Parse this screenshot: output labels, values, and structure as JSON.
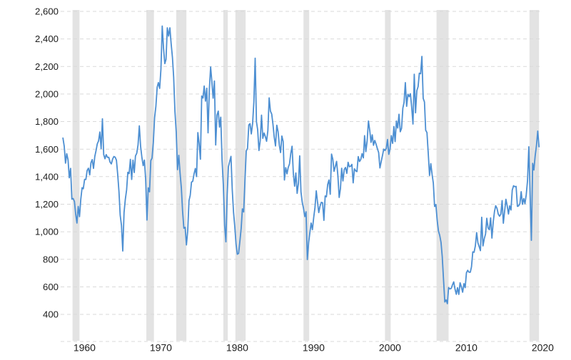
{
  "chart_data": {
    "type": "line",
    "grid": "horizontal-dashed",
    "legend": "none",
    "line_color": "#4d8fd2",
    "recession_band_color": "#e3e3e3",
    "axis_text_color": "#1c1c1c",
    "y_tick_labels": [
      "2,600",
      "2,400",
      "2,200",
      "2,000",
      "1,800",
      "1,600",
      "1,400",
      "1,200",
      "1,000",
      "800",
      "600",
      "400"
    ],
    "y_tick_values": [
      2600,
      2400,
      2200,
      2000,
      1800,
      1600,
      1400,
      1200,
      1000,
      800,
      600,
      400
    ],
    "x_tick_labels": [
      "1960",
      "1970",
      "1980",
      "1990",
      "2000",
      "2010",
      "2020"
    ],
    "x_tick_values": [
      1960,
      1970,
      1980,
      1990,
      2000,
      2010,
      2020
    ],
    "ylim": [
      400,
      2600
    ],
    "xlim": [
      1959,
      2021.5
    ],
    "recession_bands": [
      [
        1960.25,
        1961.17
      ],
      [
        1969.92,
        1970.92
      ],
      [
        1973.83,
        1975.17
      ],
      [
        1980.0,
        1980.58
      ],
      [
        1981.58,
        1982.92
      ],
      [
        1990.5,
        1991.25
      ],
      [
        2001.17,
        2001.92
      ],
      [
        2007.92,
        2009.5
      ],
      [
        2020.08,
        2021.33
      ]
    ],
    "series": {
      "samples_per_year": 6,
      "rows": [
        [
          1959,
          1680,
          1620,
          1498,
          1567,
          1524,
          1392
        ],
        [
          1960,
          1460,
          1237,
          1241,
          1220,
          1130,
          1063
        ],
        [
          1961,
          1183,
          1110,
          1236,
          1320,
          1312,
          1380
        ],
        [
          1962,
          1380,
          1445,
          1461,
          1413,
          1500,
          1524
        ],
        [
          1963,
          1460,
          1546,
          1590,
          1638,
          1660,
          1724
        ],
        [
          1964,
          1603,
          1820,
          1560,
          1530,
          1560,
          1540
        ],
        [
          1965,
          1541,
          1505,
          1493,
          1528,
          1546,
          1542
        ],
        [
          1966,
          1520,
          1417,
          1290,
          1120,
          1046,
          860
        ],
        [
          1967,
          1140,
          1236,
          1305,
          1432,
          1422,
          1526
        ],
        [
          1968,
          1380,
          1520,
          1430,
          1550,
          1570,
          1630
        ],
        [
          1969,
          1769,
          1620,
          1540,
          1480,
          1520,
          1380
        ],
        [
          1970,
          1085,
          1319,
          1290,
          1517,
          1534,
          1647
        ],
        [
          1971,
          1828,
          1910,
          2049,
          2083,
          2041,
          2182
        ],
        [
          1972,
          2494,
          2334,
          2221,
          2252,
          2481,
          2421
        ],
        [
          1973,
          2481,
          2365,
          2266,
          2123,
          1874,
          1724
        ],
        [
          1974,
          1451,
          1555,
          1426,
          1316,
          1150,
          1026
        ],
        [
          1975,
          1032,
          904,
          1005,
          1226,
          1264,
          1360
        ],
        [
          1976,
          1367,
          1421,
          1459,
          1401,
          1720,
          1641
        ],
        [
          1977,
          1527,
          1986,
          1971,
          2058,
          1949,
          2042
        ],
        [
          1978,
          1718,
          2032,
          2197,
          2092,
          1970,
          2095
        ],
        [
          1979,
          1630,
          1847,
          1876,
          1760,
          1832,
          1524
        ],
        [
          1980,
          1341,
          1047,
          927,
          1269,
          1471,
          1510
        ],
        [
          1981,
          1547,
          1306,
          1140,
          1041,
          911,
          837
        ],
        [
          1982,
          843,
          931,
          1025,
          1166,
          1144,
          1372
        ],
        [
          1983,
          1586,
          1606,
          1776,
          1785,
          1710,
          1785
        ],
        [
          1984,
          1943,
          2260,
          1799,
          1741,
          1590,
          1662
        ],
        [
          1985,
          1847,
          1678,
          1717,
          1692,
          1657,
          1734
        ],
        [
          1986,
          1972,
          1876,
          1854,
          1782,
          1687,
          1623
        ],
        [
          1987,
          1774,
          1726,
          1628,
          1575,
          1695,
          1656
        ],
        [
          1988,
          1376,
          1466,
          1421,
          1467,
          1492,
          1569
        ],
        [
          1989,
          1621,
          1422,
          1331,
          1427,
          1279,
          1351
        ],
        [
          1990,
          1551,
          1289,
          1212,
          1171,
          1110,
          1145
        ],
        [
          1991,
          798,
          921,
          996,
          1063,
          1015,
          1103
        ],
        [
          1992,
          1176,
          1297,
          1214,
          1139,
          1186,
          1214
        ],
        [
          1993,
          1210,
          1083,
          1260,
          1254,
          1343,
          1376
        ],
        [
          1994,
          1272,
          1564,
          1526,
          1439,
          1474,
          1511
        ],
        [
          1995,
          1407,
          1249,
          1314,
          1461,
          1369,
          1452
        ],
        [
          1996,
          1467,
          1424,
          1504,
          1472,
          1475,
          1489
        ],
        [
          1997,
          1355,
          1457,
          1442,
          1437,
          1546,
          1510
        ],
        [
          1998,
          1525,
          1567,
          1536,
          1698,
          1582,
          1660
        ],
        [
          1999,
          1804,
          1737,
          1649,
          1704,
          1628,
          1663
        ],
        [
          2000,
          1636,
          1604,
          1575,
          1463,
          1507,
          1551
        ],
        [
          2001,
          1600,
          1590,
          1605,
          1670,
          1562,
          1602
        ],
        [
          2002,
          1698,
          1642,
          1764,
          1655,
          1804,
          1753
        ],
        [
          2003,
          1853,
          1726,
          1751,
          1897,
          1939,
          2083
        ],
        [
          2004,
          1911,
          1998,
          1981,
          2002,
          1905,
          1782
        ],
        [
          2005,
          2144,
          1864,
          2025,
          2054,
          2151,
          2147
        ],
        [
          2006,
          2273,
          1969,
          1942,
          1737,
          1720,
          1570
        ],
        [
          2007,
          1409,
          1495,
          1415,
          1354,
          1183,
          1197
        ],
        [
          2008,
          1084,
          1005,
          973,
          923,
          820,
          652
        ],
        [
          2009,
          490,
          505,
          478,
          594,
          585,
          588
        ],
        [
          2010,
          614,
          636,
          583,
          546,
          594,
          545
        ],
        [
          2011,
          630,
          600,
          561,
          623,
          594,
          702
        ],
        [
          2012,
          720,
          706,
          706,
          746,
          854,
          851
        ],
        [
          2013,
          898,
          994,
          919,
          891,
          863,
          1105
        ],
        [
          2014,
          897,
          950,
          984,
          1098,
          1028,
          1015
        ],
        [
          2015,
          1101,
          954,
          1069,
          1147,
          1189,
          1171
        ],
        [
          2016,
          1128,
          1113,
          1128,
          1226,
          1062,
          1149
        ],
        [
          2017,
          1236,
          1189,
          1129,
          1188,
          1158,
          1303
        ],
        [
          2018,
          1334,
          1327,
          1329,
          1184,
          1188,
          1204
        ],
        [
          2019,
          1291,
          1199,
          1241,
          1204,
          1269,
          1371
        ],
        [
          2020,
          1617,
          1269,
          938,
          1497,
          1448,
          1551
        ],
        [
          2021,
          1625,
          1731,
          1617
        ]
      ]
    }
  }
}
